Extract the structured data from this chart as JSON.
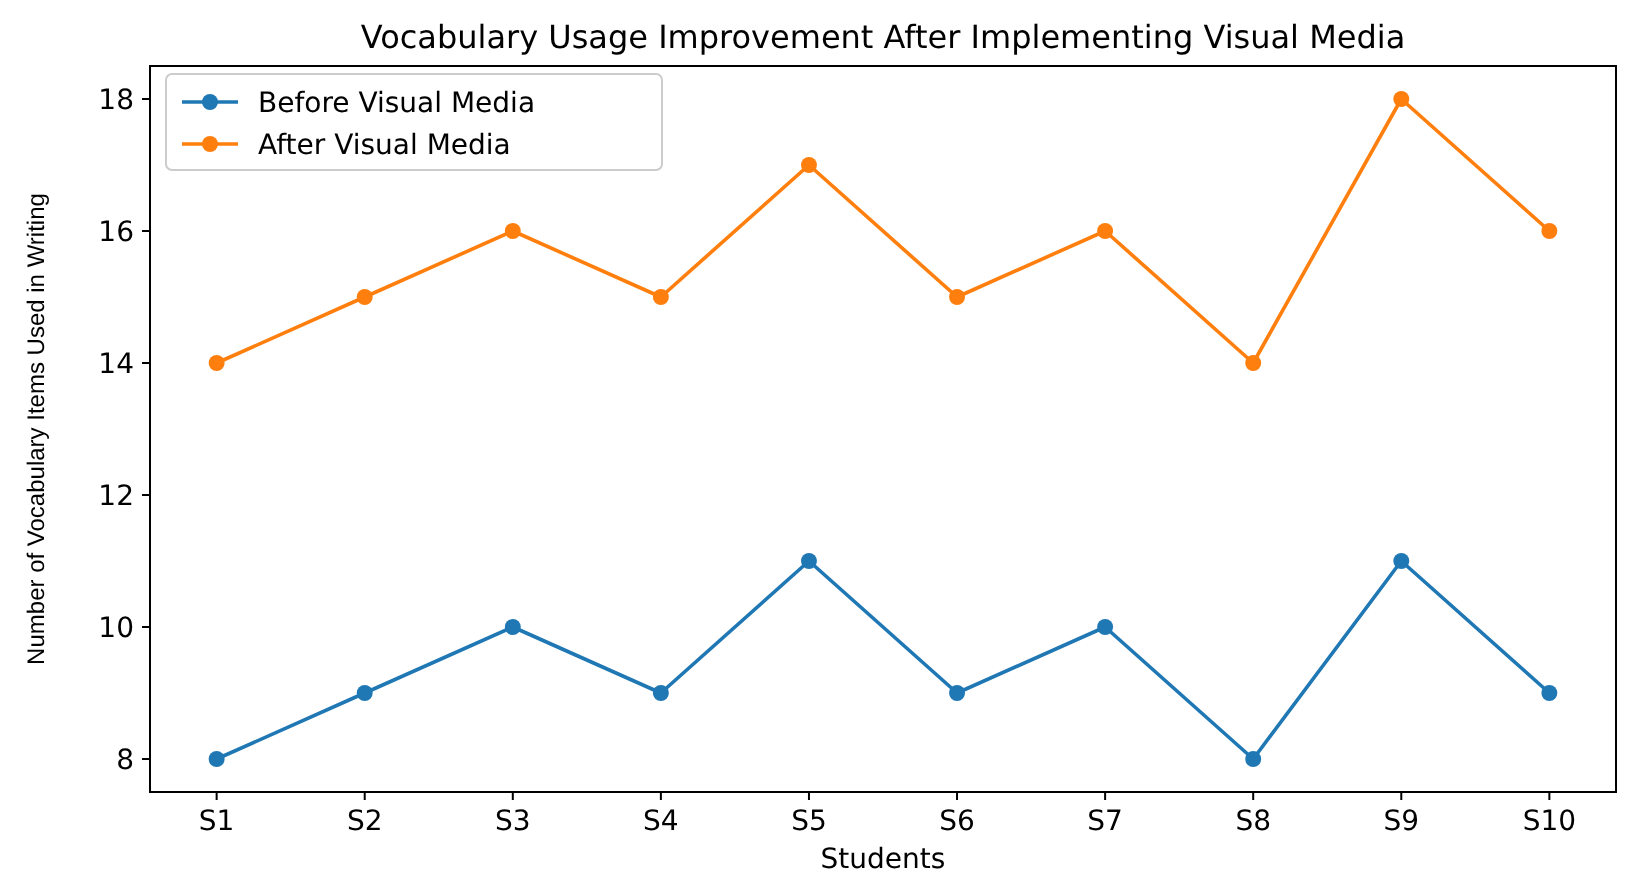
{
  "chart_data": {
    "type": "line",
    "title": "Vocabulary Usage Improvement After Implementing Visual Media",
    "xlabel": "Students",
    "ylabel": "Number of Vocabulary Items Used in Writing",
    "categories": [
      "S1",
      "S2",
      "S3",
      "S4",
      "S5",
      "S6",
      "S7",
      "S8",
      "S9",
      "S10"
    ],
    "series": [
      {
        "name": "Before Visual Media",
        "color": "#1f77b4",
        "values": [
          8,
          9,
          10,
          9,
          11,
          9,
          10,
          8,
          11,
          9
        ]
      },
      {
        "name": "After Visual Media",
        "color": "#ff7f0e",
        "values": [
          14,
          15,
          16,
          15,
          17,
          15,
          16,
          14,
          18,
          16
        ]
      }
    ],
    "ylim": [
      7.5,
      18.5
    ],
    "yticks": [
      8,
      10,
      12,
      14,
      16,
      18
    ],
    "marker": "circle",
    "legend": "top left",
    "grid": false
  }
}
